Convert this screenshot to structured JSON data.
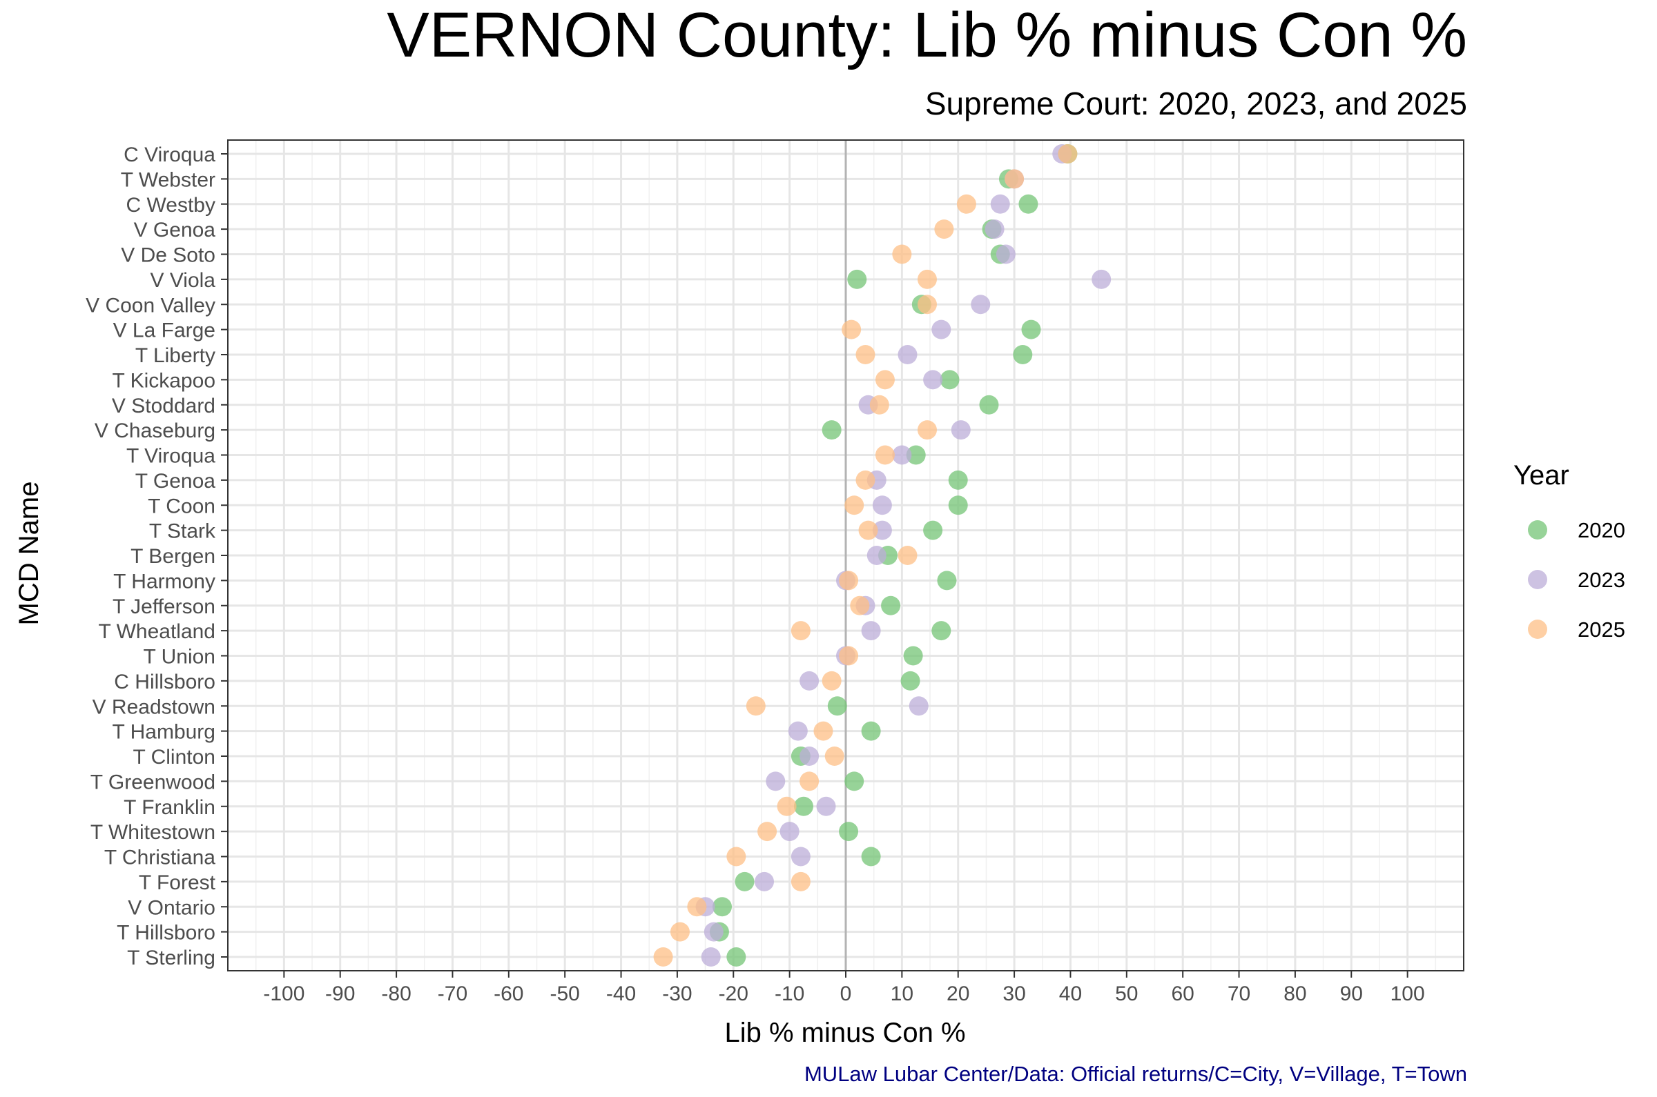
{
  "chart_data": {
    "type": "scatter",
    "title": "VERNON County: Lib % minus Con %",
    "subtitle": "Supreme Court: 2020, 2023, and 2025",
    "xlabel": "Lib % minus Con %",
    "ylabel": "MCD Name",
    "caption": "MULaw Lubar Center/Data: Official returns/C=City, V=Village, T=Town",
    "xlim": [
      -110,
      110
    ],
    "xticks": [
      -100,
      -90,
      -80,
      -70,
      -60,
      -50,
      -40,
      -30,
      -20,
      -10,
      0,
      10,
      20,
      30,
      40,
      50,
      60,
      70,
      80,
      90,
      100
    ],
    "grid": true,
    "legend": {
      "title": "Year",
      "position": "right"
    },
    "categories": [
      "C Viroqua",
      "T Webster",
      "C Westby",
      "V Genoa",
      "V De Soto",
      "V Viola",
      "V Coon Valley",
      "V La Farge",
      "T Liberty",
      "T Kickapoo",
      "V Stoddard",
      "V Chaseburg",
      "T Viroqua",
      "T Genoa",
      "T Coon",
      "T Stark",
      "T Bergen",
      "T Harmony",
      "T Jefferson",
      "T Wheatland",
      "T Union",
      "C Hillsboro",
      "V Readstown",
      "T Hamburg",
      "T Clinton",
      "T Greenwood",
      "T Franklin",
      "T Whitestown",
      "T Christiana",
      "T Forest",
      "V Ontario",
      "T Hillsboro",
      "T Sterling"
    ],
    "series": [
      {
        "name": "2020",
        "color": "#74c476",
        "values": [
          39.5,
          29,
          32.5,
          26,
          27.5,
          2,
          13.5,
          33,
          31.5,
          18.5,
          25.5,
          -2.5,
          12.5,
          20,
          20,
          15.5,
          7.5,
          18,
          8,
          17,
          12,
          11.5,
          -1.5,
          4.5,
          -8,
          1.5,
          -7.5,
          0.5,
          4.5,
          -18,
          -22,
          -22.5,
          -19.5
        ]
      },
      {
        "name": "2023",
        "color": "#bcaed8",
        "values": [
          38.5,
          30,
          27.5,
          26.5,
          28.5,
          45.5,
          24,
          17,
          11,
          15.5,
          4,
          20.5,
          10,
          5.5,
          6.5,
          6.5,
          5.5,
          0,
          3.5,
          4.5,
          0,
          -6.5,
          13,
          -8.5,
          -6.5,
          -12.5,
          -3.5,
          -10,
          -8,
          -14.5,
          -25,
          -23.5,
          -24
        ]
      },
      {
        "name": "2025",
        "color": "#fdbf85",
        "values": [
          39.5,
          30,
          21.5,
          17.5,
          10,
          14.5,
          14.5,
          1,
          3.5,
          7,
          6,
          14.5,
          7,
          3.5,
          1.5,
          4,
          11,
          0.5,
          2.5,
          -8,
          0.5,
          -2.5,
          -16,
          -4,
          -2,
          -6.5,
          -10.5,
          -14,
          -19.5,
          -8,
          -26.5,
          -29.5,
          -32.5
        ]
      }
    ]
  }
}
